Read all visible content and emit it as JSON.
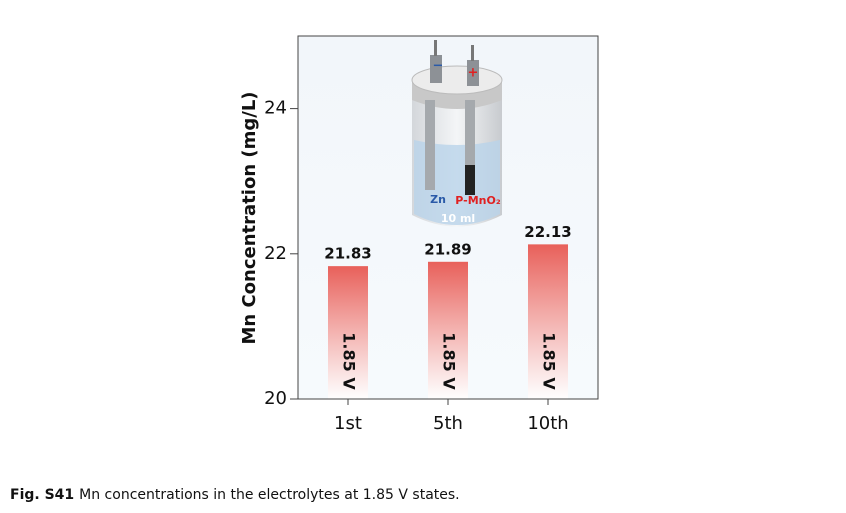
{
  "chart_data": {
    "type": "bar",
    "y_label": "Mn Concentration (mg/L)",
    "categories": [
      "1st",
      "5th",
      "10th"
    ],
    "values": [
      21.83,
      21.89,
      22.13
    ],
    "bar_annotations": [
      "1.85 V",
      "1.85 V",
      "1.85 V"
    ],
    "color": "#e8605a",
    "ylim": [
      20,
      25
    ],
    "yticks": [
      20,
      22,
      24
    ],
    "inset_labels": {
      "minus": "−",
      "plus": "+",
      "anode": "Zn",
      "cathode": "P-MnO₂",
      "volume": "10 ml"
    }
  },
  "caption": {
    "label": "Fig. S41",
    "text": "Mn concentrations in the electrolytes at 1.85 V states."
  }
}
